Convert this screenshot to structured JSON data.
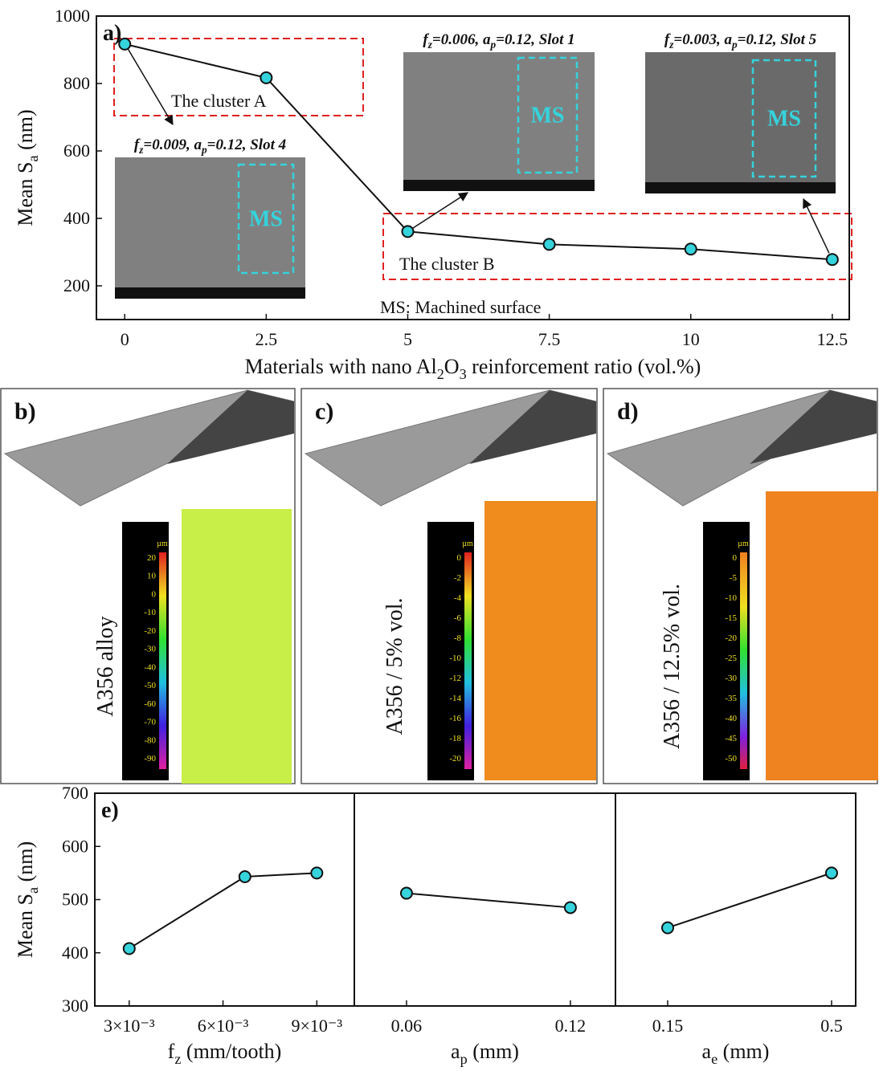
{
  "chart_data": [
    {
      "type": "line",
      "title": "a)",
      "x": [
        0,
        2.5,
        5,
        7.5,
        10,
        12.5
      ],
      "values": [
        917,
        817,
        361,
        323,
        309,
        278
      ],
      "color": "#35d3dc",
      "xlim": [
        -0.5,
        12.8
      ],
      "xticks": [
        0,
        2.5,
        5,
        7.5,
        10,
        12.5
      ],
      "ylim": [
        100,
        1000
      ],
      "yticks": [
        200,
        400,
        600,
        800,
        1000
      ],
      "xlabel": [
        "Materials with nano Al",
        "2",
        "O",
        "3",
        " reinforcement ratio (vol.%)"
      ],
      "ylabel": [
        "Mean S",
        "a",
        " (nm)"
      ],
      "annotations": [
        "The cluster A",
        "The cluster B",
        "MS: Machined surface"
      ],
      "insets": [
        {
          "caption": [
            "f",
            "z",
            "=0.009,  a",
            "p",
            "=0.12,  Slot 4"
          ],
          "text": "MS"
        },
        {
          "caption": [
            "f",
            "z",
            "=0.006, a",
            "p",
            "=0.12, Slot 1"
          ],
          "text": "MS"
        },
        {
          "caption": [
            "f",
            "z",
            "=0.003, a",
            "p",
            "=0.12,  Slot 5"
          ],
          "text": "MS"
        }
      ]
    },
    {
      "type": "line",
      "title": "e)",
      "x": [
        0.003,
        0.0067,
        0.009
      ],
      "values": [
        408,
        543,
        550
      ],
      "color": "#35d3dc",
      "xlim": [
        0.0019,
        0.0102
      ],
      "xticks": [
        {
          "value": 0.003,
          "label": "3×10⁻³"
        },
        {
          "value": 0.006,
          "label": "6×10⁻³"
        },
        {
          "value": 0.009,
          "label": "9×10⁻³"
        }
      ],
      "ylim": [
        300,
        700
      ],
      "yticks": [
        300,
        400,
        500,
        600,
        700
      ],
      "xlabel": [
        "f",
        "z",
        " (mm/tooth)"
      ],
      "ylabel": [
        "Mean S",
        "a",
        " (nm)"
      ]
    },
    {
      "type": "line",
      "x": [
        0.06,
        0.12
      ],
      "values": [
        512,
        485
      ],
      "color": "#35d3dc",
      "xlim": [
        0.0409,
        0.1365
      ],
      "xticks": [
        0.06,
        0.12
      ],
      "ylim": [
        300,
        700
      ],
      "xlabel": [
        "a",
        "p",
        " (mm)"
      ]
    },
    {
      "type": "line",
      "x": [
        0.15,
        0.5
      ],
      "values": [
        447,
        550
      ],
      "color": "#35d3dc",
      "xlim": [
        0.0385,
        0.5515
      ],
      "xticks": [
        0.15,
        0.5
      ],
      "ylim": [
        300,
        700
      ],
      "xlabel": [
        "a",
        "e",
        " (mm)"
      ]
    }
  ],
  "panels": [
    {
      "label": "b)",
      "sample": "A356 alloy",
      "unit": "µm",
      "scale": [
        20,
        10,
        0,
        -10,
        -20,
        -30,
        -40,
        -50,
        -60,
        -70,
        -80,
        -90
      ]
    },
    {
      "label": "c)",
      "sample": "A356 / 5% vol.",
      "unit": "µm",
      "scale": [
        0,
        -2,
        -4,
        -6,
        -8,
        -10,
        -12,
        -14,
        -16,
        -18,
        -20
      ]
    },
    {
      "label": "d)",
      "sample": "A356 / 12.5% vol.",
      "unit": "µm",
      "scale": [
        0,
        -5,
        -10,
        -15,
        -20,
        -25,
        -30,
        -35,
        -40,
        -45,
        -50
      ]
    }
  ]
}
